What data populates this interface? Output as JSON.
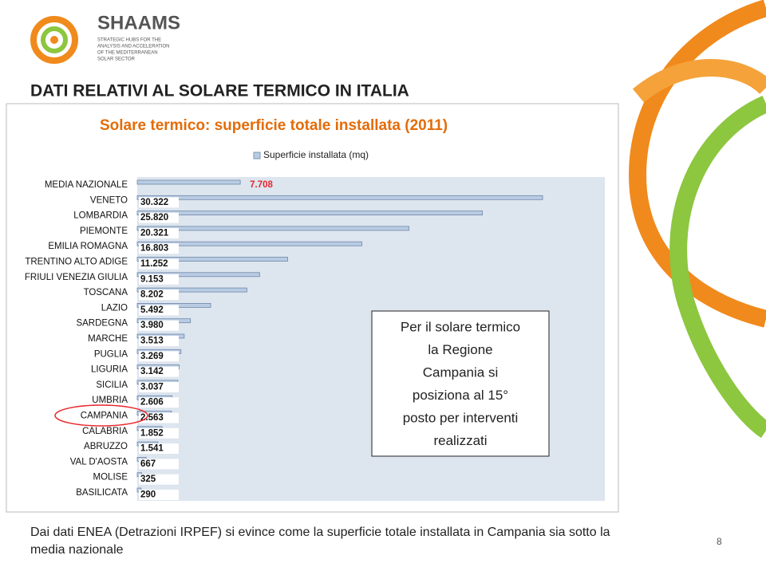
{
  "header": {
    "logo": "SHAAMS",
    "tagline": [
      "STRATEGIC HUBS FOR THE",
      "ANALYSIS AND ACCELERATION",
      "OF THE MEDITERRANEAN",
      "SOLAR SECTOR"
    ]
  },
  "slide_title": "DATI RELATIVI AL SOLARE TERMICO IN ITALIA",
  "chart_data": {
    "type": "bar",
    "orientation": "horizontal",
    "title": "Solare termico: superficie totale installata (2011)",
    "categories": [
      "MEDIA NAZIONALE",
      "VENETO",
      "LOMBARDIA",
      "PIEMONTE",
      "EMILIA ROMAGNA",
      "TRENTINO ALTO ADIGE",
      "FRIULI VENEZIA GIULIA",
      "TOSCANA",
      "LAZIO",
      "SARDEGNA",
      "MARCHE",
      "PUGLIA",
      "LIGURIA",
      "SICILIA",
      "UMBRIA",
      "CAMPANIA",
      "CALABRIA",
      "ABRUZZO",
      "VAL D'AOSTA",
      "MOLISE",
      "BASILICATA"
    ],
    "series": [
      {
        "name": "Superficie installata (mq)",
        "color": "#b9cce4",
        "values": [
          7708,
          30322,
          25820,
          20321,
          16803,
          11252,
          9153,
          8202,
          5492,
          3980,
          3513,
          3269,
          3142,
          3037,
          2606,
          2563,
          1852,
          1541,
          667,
          325,
          290
        ],
        "value_labels": [
          "7.708",
          "30.322",
          "25.820",
          "20.321",
          "16.803",
          "11.252",
          "9.153",
          "8.202",
          "5.492",
          "3.980",
          "3.513",
          "3.269",
          "3.142",
          "3.037",
          "2.606",
          "2.563",
          "1.852",
          "1.541",
          "667",
          "325",
          "290"
        ]
      }
    ],
    "highlight_color": "#e8262b"
  },
  "callout": [
    "Per il solare termico",
    "la Regione",
    "Campania si",
    "posiziona al 15°",
    "posto per interventi",
    "realizzati"
  ],
  "footer": [
    "Dai dati ENEA (Detrazioni IRPEF)  si evince come la superficie totale installata in Campania sia sotto la",
    "media nazionale"
  ],
  "page_number": "8"
}
